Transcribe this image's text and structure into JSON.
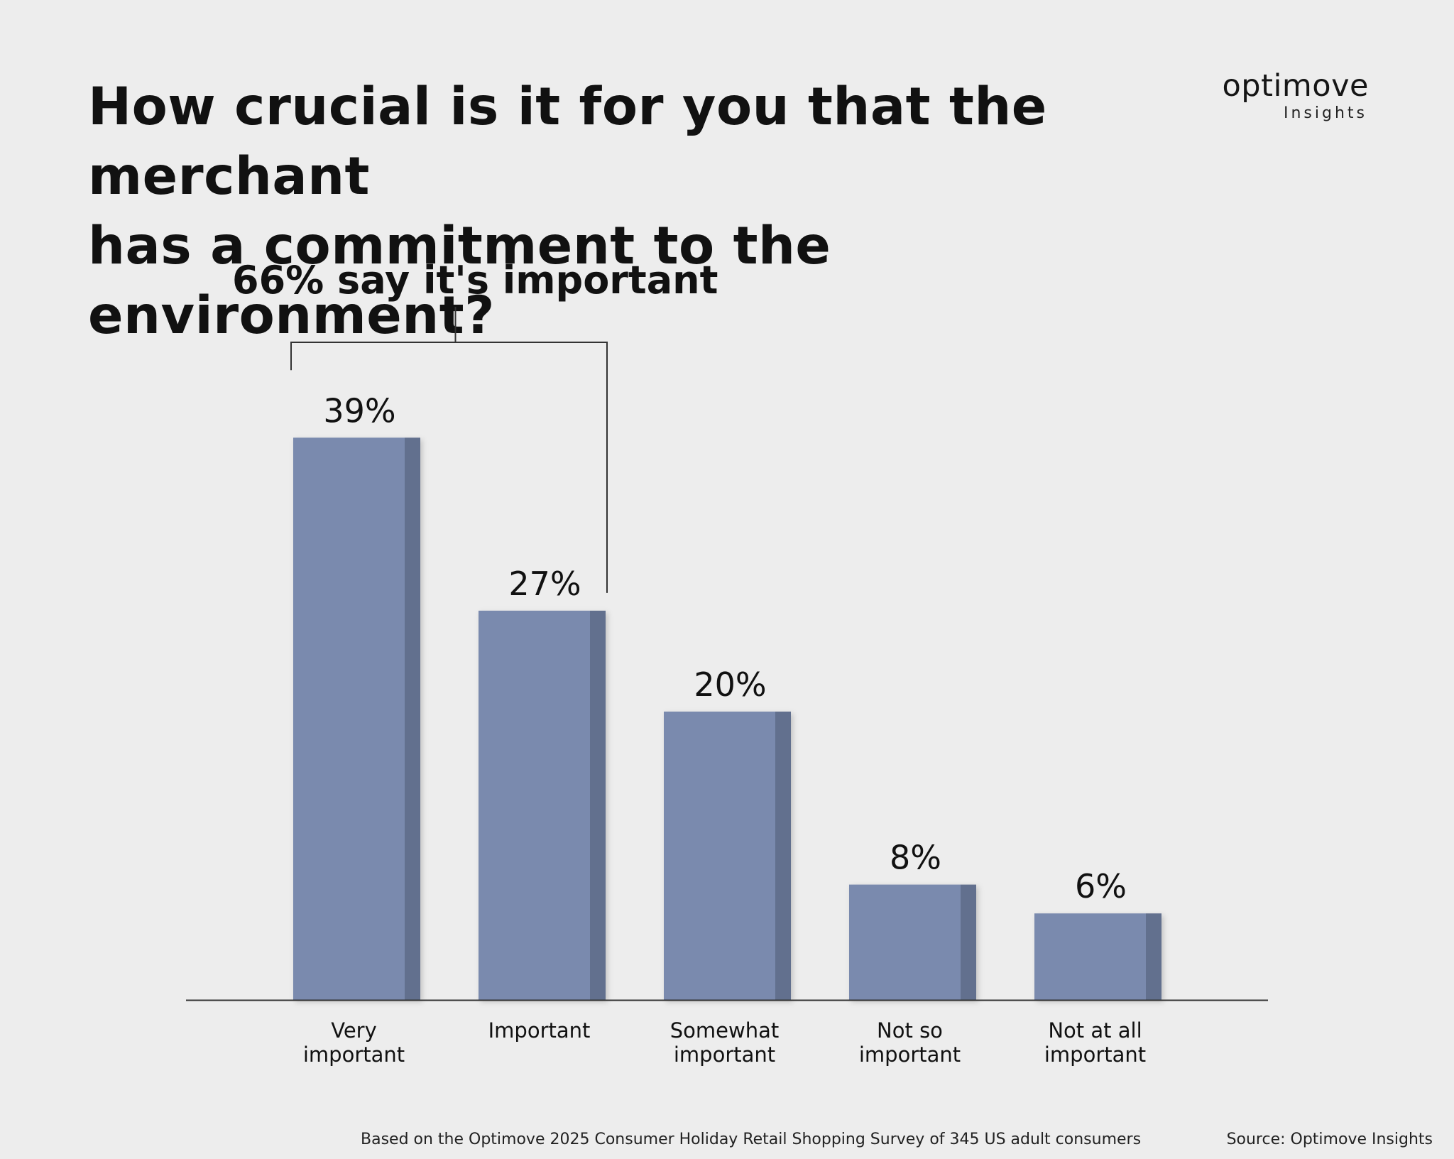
{
  "title_lines": [
    "How crucial is it for you that the merchant",
    "has a commitment to the environment?"
  ],
  "logo": {
    "name": "optimove",
    "sub": "Insights"
  },
  "chart_data": {
    "type": "bar",
    "categories": [
      [
        "Very",
        "important"
      ],
      [
        "Important"
      ],
      [
        "Somewhat",
        "important"
      ],
      [
        "Not so",
        "important"
      ],
      [
        "Not at all",
        "important"
      ]
    ],
    "values": [
      39,
      27,
      20,
      8,
      6
    ],
    "value_labels": [
      "39%",
      "27%",
      "20%",
      "8%",
      "6%"
    ],
    "unit": "%",
    "grid": false,
    "annotation": {
      "text": "66% say it's important",
      "spans_categories": [
        0,
        1
      ]
    },
    "colors": {
      "bar_front": "#7a8aae",
      "bar_side": "#626f8e",
      "axis": "#333333",
      "bracket": "#333333"
    }
  },
  "footnote": "Based on the Optimove 2025 Consumer Holiday Retail Shopping Survey of 345 US adult consumers",
  "source": "Source: Optimove Insights"
}
